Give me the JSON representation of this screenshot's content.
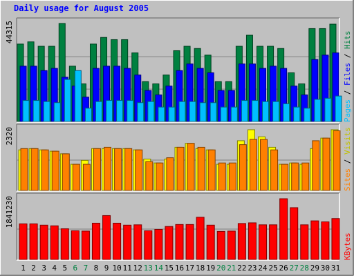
{
  "chart_data": {
    "type": "bar",
    "title": "Daily usage for August 2005",
    "categories": [
      "1",
      "2",
      "3",
      "4",
      "5",
      "6",
      "7",
      "8",
      "9",
      "10",
      "11",
      "12",
      "13",
      "14",
      "15",
      "16",
      "17",
      "18",
      "19",
      "20",
      "21",
      "22",
      "23",
      "24",
      "25",
      "26",
      "27",
      "28",
      "29",
      "30",
      "31"
    ],
    "weekend_days": [
      "6",
      "7",
      "13",
      "14",
      "20",
      "21",
      "27",
      "28"
    ],
    "grid": true,
    "panels": [
      {
        "id": "hits",
        "max_label": "44315",
        "ylim": [
          0,
          44315
        ],
        "series": [
          {
            "name": "Hits",
            "color": "#008040",
            "values": [
              35000,
              36000,
              34000,
              34000,
              44315,
              25000,
              17000,
              35000,
              38000,
              37000,
              37000,
              31000,
              18000,
              17000,
              21000,
              32000,
              34000,
              33000,
              30000,
              18000,
              18000,
              34000,
              39000,
              34000,
              34000,
              33000,
              22000,
              17000,
              42000,
              42000,
              44000
            ]
          },
          {
            "name": "Files",
            "color": "#0000ff",
            "values": [
              25000,
              25000,
              23000,
              24000,
              20000,
              16000,
              11000,
              24000,
              25000,
              25000,
              24000,
              21000,
              14000,
              12000,
              16000,
              23000,
              26000,
              24000,
              22000,
              14000,
              14000,
              26000,
              26000,
              24000,
              25000,
              24000,
              16000,
              12000,
              28000,
              30000,
              31000
            ]
          },
          {
            "name": "Pages",
            "color": "#00c0ff",
            "values": [
              9500,
              9500,
              9000,
              8500,
              19000,
              23000,
              6000,
              9000,
              9500,
              9500,
              9500,
              8500,
              9000,
              6500,
              6500,
              9000,
              9000,
              8500,
              8500,
              6500,
              6500,
              9500,
              9500,
              9000,
              9000,
              8000,
              6500,
              6000,
              10000,
              10500,
              11500
            ]
          }
        ],
        "legend": [
          "Pages",
          "Files",
          "Hits"
        ]
      },
      {
        "id": "visits",
        "max_label": "2320",
        "ylim": [
          0,
          2320
        ],
        "series": [
          {
            "name": "Visits",
            "color": "#ffff00",
            "values": [
              1550,
              1600,
              1550,
              1500,
              1400,
              1000,
              1150,
              1600,
              1600,
              1600,
              1600,
              1550,
              1200,
              1050,
              1200,
              1650,
              1800,
              1600,
              1550,
              1000,
              1000,
              1900,
              2320,
              2050,
              1650,
              1000,
              1050,
              1000,
              1600,
              2000,
              2320
            ]
          },
          {
            "name": "Sites",
            "color": "#ff8000",
            "values": [
              1600,
              1600,
              1550,
              1500,
              1400,
              1000,
              1000,
              1600,
              1650,
              1600,
              1600,
              1550,
              1100,
              1050,
              1250,
              1650,
              1800,
              1650,
              1550,
              1050,
              1050,
              1750,
              1950,
              1950,
              1550,
              1000,
              1050,
              1050,
              1900,
              2000,
              2280
            ]
          }
        ],
        "legend": [
          "Sites",
          "Visits"
        ]
      },
      {
        "id": "kbytes",
        "max_label": "1841230",
        "ylim": [
          0,
          1841230
        ],
        "series": [
          {
            "name": "KBytes",
            "color": "#ff0000",
            "values": [
              1080000,
              1080000,
              1040000,
              1020000,
              930000,
              870000,
              860000,
              1100000,
              1330000,
              1100000,
              1040000,
              1050000,
              870000,
              910000,
              1000000,
              1060000,
              1060000,
              1280000,
              1040000,
              850000,
              860000,
              1090000,
              1110000,
              1050000,
              1050000,
              1841230,
              1570000,
              1050000,
              1170000,
              1140000,
              1240000
            ]
          }
        ],
        "legend": [
          "KBytes"
        ]
      }
    ]
  }
}
